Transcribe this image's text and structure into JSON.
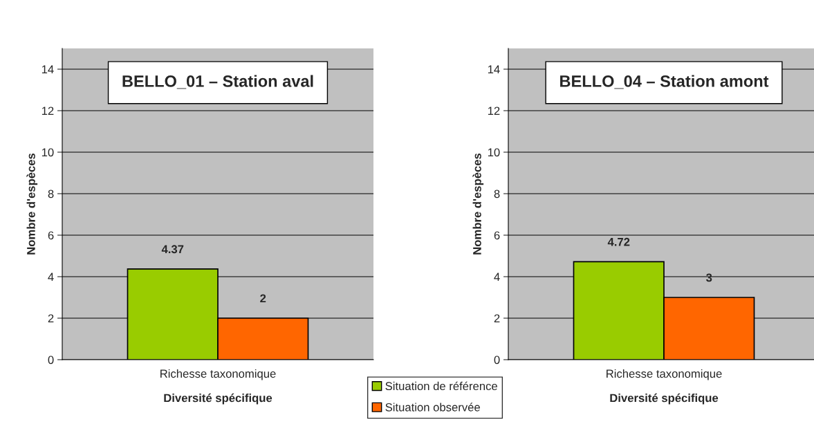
{
  "chart_data": [
    {
      "type": "bar",
      "title": "BELLO_01 – Station aval",
      "categories": [
        "Richesse taxonomique"
      ],
      "xlabel": "Diversité spécifique",
      "ylabel": "Nombre d'espèces",
      "series": [
        {
          "name": "Situation de référence",
          "color": "#99cc00",
          "values": [
            4.37
          ]
        },
        {
          "name": "Situation observée",
          "color": "#ff6600",
          "values": [
            2
          ]
        }
      ],
      "ylim": [
        0,
        15
      ],
      "yticks": [
        0,
        2,
        4,
        6,
        8,
        10,
        12,
        14
      ],
      "grid": "y",
      "data_labels": true,
      "legend": "bottom right"
    },
    {
      "type": "bar",
      "title": "BELLO_04 – Station amont",
      "categories": [
        "Richesse taxonomique"
      ],
      "xlabel": "Diversité spécifique",
      "ylabel": "Nombre d'espèces",
      "series": [
        {
          "color": "#99cc00",
          "values": [
            4.72
          ]
        },
        {
          "color": "#ff6600",
          "values": [
            3
          ]
        }
      ],
      "ylim": [
        0,
        15
      ],
      "yticks": [
        0,
        2,
        4,
        6,
        8,
        10,
        12,
        14
      ],
      "grid": "y",
      "data_labels": true
    }
  ]
}
